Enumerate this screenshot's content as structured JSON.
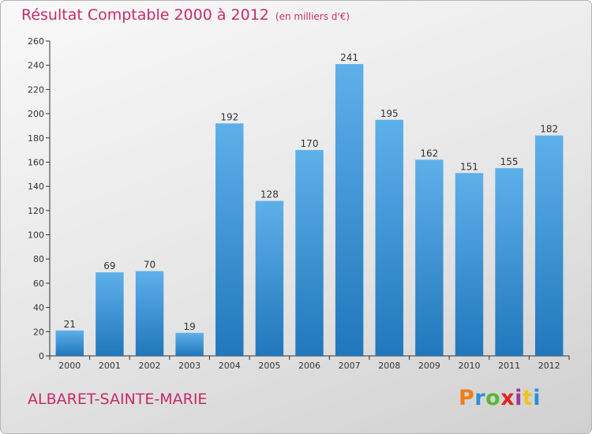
{
  "header": {
    "title": "Résultat Comptable 2000 à 2012",
    "unit": "(en milliers d'€)"
  },
  "footer": {
    "city": "ALBARET-SAINTE-MARIE",
    "logo": "Proxiti",
    "logo_colors": [
      "#f07d1a",
      "#2e8fd6",
      "#5bb53a",
      "#e3261f",
      "#9c3c96",
      "#f0c419",
      "#2e8fd6"
    ]
  },
  "colors": {
    "bar_light": "#5eb0ea",
    "bar_dark": "#2177bb",
    "title": "#c72b6a",
    "axis": "#333333"
  },
  "chart_data": {
    "type": "bar",
    "categories": [
      "2000",
      "2001",
      "2002",
      "2003",
      "2004",
      "2005",
      "2006",
      "2007",
      "2008",
      "2009",
      "2010",
      "2011",
      "2012"
    ],
    "values": [
      21,
      69,
      70,
      19,
      192,
      128,
      170,
      241,
      195,
      162,
      151,
      155,
      182
    ],
    "ylim": [
      0,
      260
    ],
    "yticks": [
      0,
      20,
      40,
      60,
      80,
      100,
      120,
      140,
      160,
      180,
      200,
      220,
      240,
      260
    ],
    "grid": false,
    "data_labels": true
  }
}
